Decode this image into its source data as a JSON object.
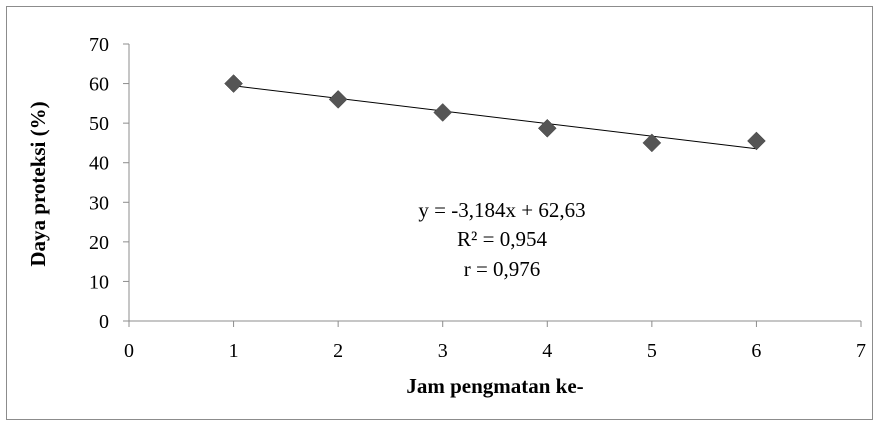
{
  "chart_data": {
    "type": "scatter",
    "title": "",
    "xlabel": "Jam pengmatan ke-",
    "ylabel": "Daya proteksi (%)",
    "xlim": [
      0,
      7
    ],
    "ylim": [
      0,
      70
    ],
    "xticks": [
      "0",
      "1",
      "2",
      "3",
      "4",
      "5",
      "6",
      "7"
    ],
    "yticks": [
      "0",
      "10",
      "20",
      "30",
      "40",
      "50",
      "60",
      "70"
    ],
    "grid": false,
    "legend": "none",
    "marker": "diamond",
    "marker_color": "#555555",
    "trendline_color": "#000000",
    "x": [
      1,
      2,
      3,
      4,
      5,
      6
    ],
    "y": [
      60,
      56,
      52.7,
      48.7,
      45,
      45.5
    ],
    "trendline": {
      "slope": -3.184,
      "intercept": 62.63,
      "x_range": [
        1,
        6
      ]
    },
    "annotations": [
      "y = -3,184x + 62,63",
      "R² = 0,954",
      "r =  0,976"
    ]
  }
}
